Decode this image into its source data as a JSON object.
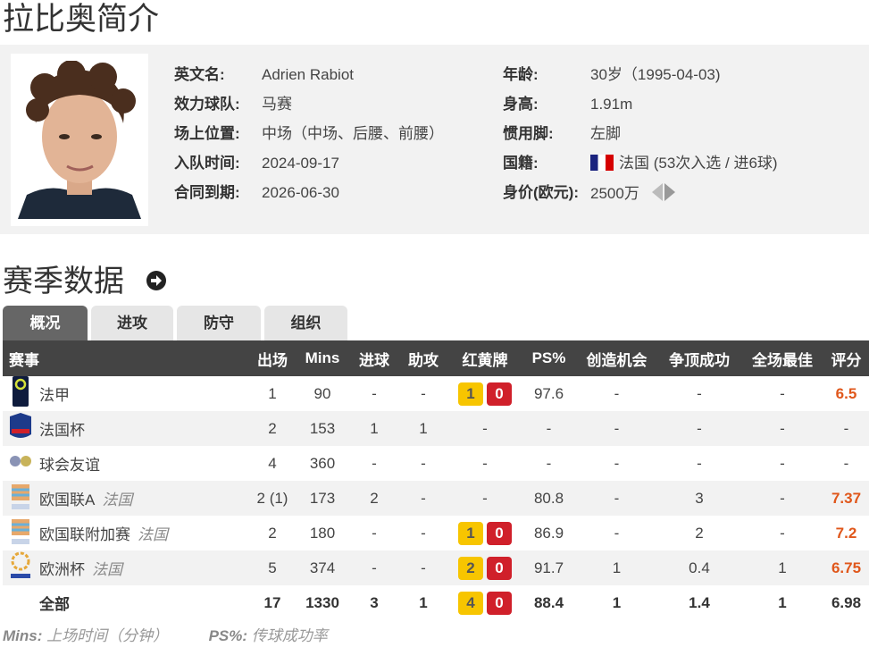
{
  "page_title": "拉比奥简介",
  "profile": {
    "left": [
      {
        "label": "英文名:",
        "value": "Adrien Rabiot"
      },
      {
        "label": "效力球队:",
        "value": "马赛"
      },
      {
        "label": "场上位置:",
        "value": "中场（中场、后腰、前腰）"
      },
      {
        "label": "入队时间:",
        "value": "2024-09-17"
      },
      {
        "label": "合同到期:",
        "value": "2026-06-30"
      }
    ],
    "right": [
      {
        "label": "年龄:",
        "value": "30岁（1995-04-03)"
      },
      {
        "label": "身高:",
        "value": "1.91m"
      },
      {
        "label": "惯用脚:",
        "value": "左脚"
      },
      {
        "label": "国籍:",
        "value": "法国 (53次入选 / 进6球)",
        "icon": "france-flag-icon"
      },
      {
        "label": "身价(欧元):",
        "value": "2500万",
        "icon": "value-trend-arrows-icon"
      }
    ]
  },
  "season": {
    "title": "赛季数据",
    "tabs": [
      "概况",
      "进攻",
      "防守",
      "组织"
    ],
    "active_tab": 0,
    "headers": [
      "赛事",
      "出场",
      "Mins",
      "进球",
      "助攻",
      "红黄牌",
      "PS%",
      "创造机会",
      "争顶成功",
      "全场最佳",
      "评分"
    ],
    "rows": [
      {
        "icon": "ligue1-logo-icon",
        "name": "法甲",
        "team": "",
        "apps": "1",
        "mins": "90",
        "goals": "-",
        "assists": "-",
        "yellow": "1",
        "red": "0",
        "ps": "97.6",
        "chances": "-",
        "aerials": "-",
        "motm": "-",
        "rating": "6.5"
      },
      {
        "icon": "coupe-de-france-logo-icon",
        "name": "法国杯",
        "team": "",
        "apps": "2",
        "mins": "153",
        "goals": "1",
        "assists": "1",
        "yellow": null,
        "red": null,
        "ps": "-",
        "chances": "-",
        "aerials": "-",
        "motm": "-",
        "rating": "-"
      },
      {
        "icon": "club-friendly-logo-icon",
        "name": "球会友谊",
        "team": "",
        "apps": "4",
        "mins": "360",
        "goals": "-",
        "assists": "-",
        "yellow": null,
        "red": null,
        "ps": "-",
        "chances": "-",
        "aerials": "-",
        "motm": "-",
        "rating": "-"
      },
      {
        "icon": "nations-league-logo-icon",
        "name": "欧国联A",
        "team": "法国",
        "apps": "2 (1)",
        "mins": "173",
        "goals": "2",
        "assists": "-",
        "yellow": null,
        "red": null,
        "ps": "80.8",
        "chances": "-",
        "aerials": "3",
        "motm": "-",
        "rating": "7.37"
      },
      {
        "icon": "nations-league-logo-icon",
        "name": "欧国联附加赛",
        "team": "法国",
        "apps": "2",
        "mins": "180",
        "goals": "-",
        "assists": "-",
        "yellow": "1",
        "red": "0",
        "ps": "86.9",
        "chances": "-",
        "aerials": "2",
        "motm": "-",
        "rating": "7.2"
      },
      {
        "icon": "euro-logo-icon",
        "name": "欧洲杯",
        "team": "法国",
        "apps": "5",
        "mins": "374",
        "goals": "-",
        "assists": "-",
        "yellow": "2",
        "red": "0",
        "ps": "91.7",
        "chances": "1",
        "aerials": "0.4",
        "motm": "1",
        "rating": "6.75"
      }
    ],
    "total": {
      "name": "全部",
      "apps": "17",
      "mins": "1330",
      "goals": "3",
      "assists": "1",
      "yellow": "4",
      "red": "0",
      "ps": "88.4",
      "chances": "1",
      "aerials": "1.4",
      "motm": "1",
      "rating": "6.98"
    }
  },
  "legend": {
    "mins_key": "Mins:",
    "mins_desc": "上场时间（分钟）",
    "ps_key": "PS%:",
    "ps_desc": "传球成功率"
  },
  "colors": {
    "header_bg": "#444444",
    "rating": "#e0571b",
    "yellow_card": "#f7c500",
    "red_card": "#d0202a",
    "info_bg": "#f2f2f2"
  }
}
